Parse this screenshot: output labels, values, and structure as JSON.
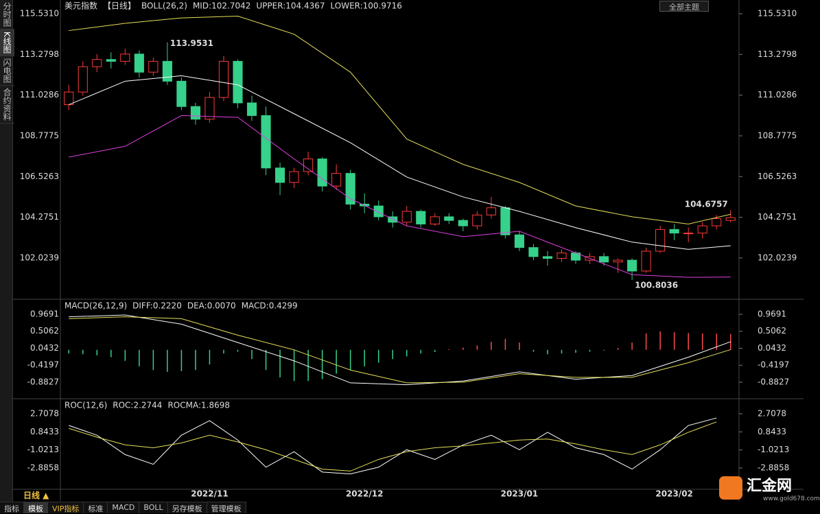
{
  "ui": {
    "sidebar": [
      "分时图",
      "K线图",
      "闪电图",
      "合约资料"
    ],
    "theme_button": "全部主题",
    "period_button": "日线 ▲",
    "tabs": [
      "指标",
      "模板",
      "VIP指标",
      "标准",
      "MACD",
      "BOLL",
      "另存模板",
      "管理模板"
    ],
    "logo": {
      "name": "汇金网",
      "url": "www.gold678.com"
    }
  },
  "chart_data": [
    {
      "type": "candlestick",
      "title": "美元指数",
      "subtitle": "【日线】",
      "indicator": "BOLL(26,2)",
      "up_color": "#ff3b3b",
      "down_color": "#36d18a",
      "candles": [
        [
          110.5,
          111.6,
          110.2,
          111.2
        ],
        [
          111.2,
          112.9,
          111.0,
          112.6
        ],
        [
          112.6,
          113.3,
          112.3,
          113.0
        ],
        [
          113.0,
          113.4,
          112.5,
          112.9
        ],
        [
          112.9,
          113.6,
          112.7,
          113.3
        ],
        [
          113.3,
          113.5,
          112.0,
          112.3
        ],
        [
          112.3,
          113.1,
          112.1,
          112.9
        ],
        [
          112.9,
          113.9531,
          111.6,
          111.8
        ],
        [
          111.8,
          112.0,
          110.2,
          110.4
        ],
        [
          110.4,
          110.6,
          109.4,
          109.7
        ],
        [
          109.7,
          111.2,
          109.5,
          110.9
        ],
        [
          110.9,
          113.2,
          110.7,
          112.9
        ],
        [
          112.9,
          113.0,
          110.3,
          110.6
        ],
        [
          110.6,
          111.0,
          109.6,
          109.9
        ],
        [
          109.9,
          110.4,
          106.6,
          107.0
        ],
        [
          107.0,
          107.3,
          105.5,
          106.2
        ],
        [
          106.2,
          107.0,
          105.9,
          106.8
        ],
        [
          106.8,
          107.9,
          106.6,
          107.5
        ],
        [
          107.5,
          107.6,
          105.7,
          106.0
        ],
        [
          106.0,
          107.2,
          105.8,
          106.7
        ],
        [
          106.7,
          106.9,
          104.7,
          105.0
        ],
        [
          105.0,
          105.6,
          104.5,
          104.9
        ],
        [
          104.9,
          105.2,
          104.1,
          104.3
        ],
        [
          104.3,
          104.6,
          103.7,
          104.0
        ],
        [
          104.0,
          104.9,
          103.8,
          104.6
        ],
        [
          104.6,
          104.7,
          103.7,
          103.9
        ],
        [
          103.9,
          104.5,
          103.8,
          104.3
        ],
        [
          104.3,
          104.5,
          103.9,
          104.1
        ],
        [
          104.1,
          104.2,
          103.5,
          103.8
        ],
        [
          103.8,
          104.6,
          103.6,
          104.4
        ],
        [
          104.4,
          105.4,
          104.2,
          104.8
        ],
        [
          104.8,
          104.9,
          103.1,
          103.3
        ],
        [
          103.3,
          103.5,
          102.4,
          102.6
        ],
        [
          102.6,
          102.8,
          101.9,
          102.1
        ],
        [
          102.1,
          102.4,
          101.6,
          102.0
        ],
        [
          102.0,
          102.5,
          101.8,
          102.3
        ],
        [
          102.3,
          102.4,
          101.7,
          101.9
        ],
        [
          101.9,
          102.3,
          101.7,
          102.1
        ],
        [
          102.1,
          102.3,
          101.6,
          101.8
        ],
        [
          101.8,
          102.0,
          101.2,
          101.9
        ],
        [
          101.9,
          102.0,
          100.8036,
          101.3
        ],
        [
          101.3,
          102.6,
          101.2,
          102.4
        ],
        [
          102.4,
          103.8,
          102.3,
          103.6
        ],
        [
          103.6,
          103.9,
          103.0,
          103.4
        ],
        [
          103.4,
          103.7,
          102.9,
          103.4
        ],
        [
          103.4,
          104.0,
          103.1,
          103.8
        ],
        [
          103.8,
          104.4,
          103.6,
          104.2
        ],
        [
          104.1,
          104.6757,
          104.0,
          104.25
        ]
      ],
      "series": [
        {
          "name": "MID:102.7042",
          "color": "#ffffff",
          "x": [
            0,
            4,
            8,
            12,
            16,
            20,
            24,
            28,
            32,
            36,
            40,
            44,
            47
          ],
          "values": [
            110.5,
            111.8,
            112.1,
            111.6,
            110.0,
            108.4,
            106.5,
            105.4,
            104.6,
            103.7,
            102.9,
            102.5,
            102.7
          ]
        },
        {
          "name": "UPPER:104.4367",
          "color": "#e8e05a",
          "x": [
            0,
            4,
            8,
            12,
            16,
            20,
            24,
            28,
            32,
            36,
            40,
            44,
            47
          ],
          "values": [
            114.6,
            115.0,
            115.3,
            115.4,
            114.4,
            112.3,
            108.6,
            107.2,
            106.2,
            104.9,
            104.3,
            103.9,
            104.44
          ]
        },
        {
          "name": "LOWER:100.9716",
          "color": "#e040e0",
          "x": [
            0,
            4,
            8,
            12,
            16,
            20,
            24,
            28,
            32,
            36,
            40,
            44,
            47
          ],
          "values": [
            107.6,
            108.2,
            109.9,
            109.8,
            107.5,
            105.3,
            103.8,
            103.2,
            103.5,
            102.3,
            101.1,
            100.95,
            100.97
          ]
        }
      ],
      "ylim": [
        99.78,
        115.76
      ],
      "yticks": [
        {
          "value": 115.531,
          "label": "115.5310"
        },
        113.2798,
        111.0286,
        108.7775,
        106.5263,
        104.2751,
        102.0239
      ]
    },
    {
      "type": "macd",
      "title": "MACD(26,12,9)",
      "up_color": "#ff4a4a",
      "down_color": "#36d18a",
      "histogram": {
        "name": "MACD:0.4299",
        "color": "#e040e0",
        "values": [
          -0.1,
          -0.12,
          -0.15,
          -0.2,
          -0.3,
          -0.45,
          -0.55,
          -0.6,
          -0.58,
          -0.55,
          -0.4,
          -0.1,
          -0.05,
          -0.25,
          -0.55,
          -0.75,
          -0.85,
          -0.85,
          -0.8,
          -0.65,
          -0.55,
          -0.45,
          -0.35,
          -0.25,
          -0.18,
          -0.1,
          -0.06,
          0.02,
          0.06,
          0.12,
          0.22,
          0.3,
          0.2,
          -0.05,
          -0.12,
          -0.1,
          -0.08,
          -0.05,
          -0.02,
          0.05,
          0.2,
          0.45,
          0.5,
          0.48,
          0.46,
          0.45,
          0.44,
          0.4299
        ]
      },
      "series": [
        {
          "name": "DIFF:0.2220",
          "color": "#ffffff",
          "x": [
            0,
            4,
            8,
            12,
            16,
            20,
            24,
            28,
            32,
            36,
            40,
            44,
            47
          ],
          "values": [
            0.9,
            0.95,
            0.7,
            0.2,
            -0.3,
            -0.9,
            -0.95,
            -0.85,
            -0.6,
            -0.8,
            -0.7,
            -0.2,
            0.222
          ]
        },
        {
          "name": "DEA:0.0070",
          "color": "#e8e05a",
          "x": [
            0,
            4,
            8,
            12,
            16,
            20,
            24,
            28,
            32,
            36,
            40,
            44,
            47
          ],
          "values": [
            0.85,
            0.9,
            0.85,
            0.4,
            0.0,
            -0.55,
            -0.9,
            -0.88,
            -0.65,
            -0.75,
            -0.75,
            -0.35,
            0.007
          ]
        }
      ],
      "ylim": [
        -1.313,
        1.343
      ],
      "yticks": [
        0.9691,
        0.5062,
        0.0432,
        -0.4197,
        -0.8827
      ]
    },
    {
      "type": "line",
      "title": "ROC(12,6)",
      "series": [
        {
          "name": "ROC:2.2744",
          "color": "#ffffff",
          "x": [
            0,
            2,
            4,
            6,
            8,
            10,
            12,
            14,
            16,
            18,
            20,
            22,
            24,
            26,
            28,
            30,
            32,
            34,
            36,
            38,
            40,
            42,
            44,
            46
          ],
          "values": [
            1.5,
            0.5,
            -1.5,
            -2.5,
            0.5,
            2.0,
            0.0,
            -2.8,
            -1.2,
            -3.3,
            -3.5,
            -2.8,
            -1.0,
            -2.0,
            -0.5,
            0.5,
            -1.0,
            0.8,
            -0.8,
            -1.5,
            -3.0,
            -1.0,
            1.5,
            2.2744
          ]
        },
        {
          "name": "ROCMA:1.8698",
          "color": "#e8e05a",
          "x": [
            0,
            2,
            4,
            6,
            8,
            10,
            12,
            14,
            16,
            18,
            20,
            22,
            24,
            26,
            28,
            30,
            32,
            34,
            36,
            38,
            40,
            42,
            44,
            46
          ],
          "values": [
            1.2,
            0.3,
            -0.5,
            -0.8,
            -0.3,
            0.5,
            -0.2,
            -1.0,
            -2.0,
            -3.0,
            -3.2,
            -2.0,
            -1.2,
            -0.8,
            -0.6,
            -0.3,
            0.0,
            0.1,
            -0.4,
            -1.0,
            -1.5,
            -0.5,
            0.8,
            1.8698
          ]
        }
      ],
      "ylim": [
        -5.01,
        4.12
      ],
      "yticks": [
        2.7078,
        0.8433,
        -1.0213,
        -2.8858
      ],
      "xticks": [
        {
          "value": 10,
          "label": "2022/11"
        },
        {
          "value": 21,
          "label": "2022/12"
        },
        {
          "value": 32,
          "label": "2023/01"
        },
        {
          "value": 43,
          "label": "2023/02"
        }
      ]
    }
  ]
}
